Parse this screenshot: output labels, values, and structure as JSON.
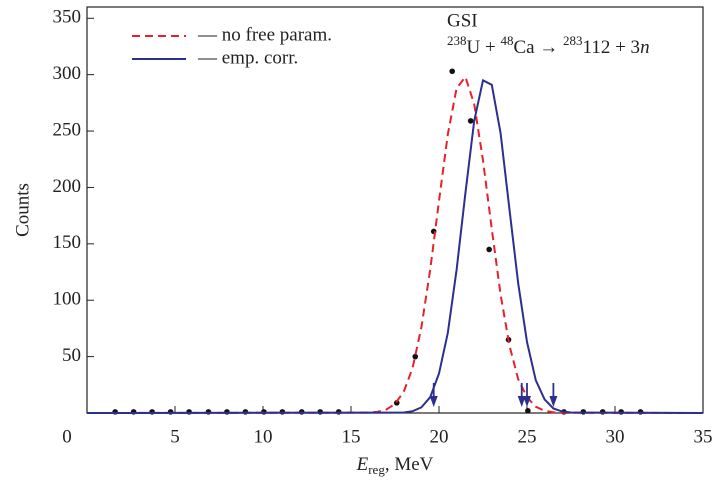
{
  "chart_data": {
    "type": "line",
    "xlim": [
      0,
      35
    ],
    "xticks": [
      0,
      5,
      10,
      15,
      20,
      25,
      30,
      35
    ],
    "ylim": [
      0,
      360
    ],
    "yticks": [
      50,
      100,
      150,
      200,
      250,
      300,
      350
    ],
    "y_label": "Counts",
    "x_label": {
      "parts": [
        "E",
        "reg",
        ", MeV"
      ],
      "styles": [
        "italic",
        "sub",
        "normal"
      ]
    },
    "legend": "upper left",
    "annotation": {
      "title": "GSI",
      "parts": [
        "238",
        "U + ",
        "48",
        "Ca → ",
        "283",
        "112 + 3",
        "n"
      ],
      "styles": [
        "sup",
        "normal",
        "sup",
        "normal",
        "sup",
        "normal",
        "italic"
      ]
    },
    "arrows": {
      "color": "#2b2f8f",
      "x": [
        19.7,
        24.7,
        25.0,
        26.5
      ]
    },
    "series": [
      {
        "type": "scatter",
        "color": "#111111",
        "x": [
          1.6,
          2.65,
          3.7,
          4.75,
          5.8,
          6.9,
          7.95,
          9.0,
          10.05,
          11.1,
          12.2,
          13.25,
          14.3,
          17.6,
          18.65,
          19.7,
          20.75,
          21.8,
          22.85,
          23.95,
          25.05,
          27.1,
          28.2,
          29.3,
          30.35,
          31.45
        ],
        "values": [
          1,
          1,
          1,
          1,
          1,
          1,
          1,
          1,
          1,
          1,
          1,
          1,
          1,
          9,
          50,
          161,
          303,
          259,
          145,
          65,
          2,
          1,
          1,
          1,
          1,
          1
        ]
      },
      {
        "type": "line",
        "name": "— no free param.",
        "color": "#e8202a",
        "dashed": true,
        "x": [
          0,
          16,
          16.5,
          17,
          17.5,
          18,
          18.5,
          19,
          19.5,
          20,
          20.5,
          21,
          21.5,
          22,
          22.5,
          23,
          23.5,
          24,
          24.5,
          25,
          25.5,
          26,
          26.5,
          27,
          35
        ],
        "values": [
          0,
          0.3,
          1,
          3,
          8,
          19,
          40,
          76,
          127,
          188,
          247,
          288,
          298,
          274,
          224,
          163,
          105,
          60,
          30,
          14,
          5.5,
          2,
          0.6,
          0.2,
          0
        ]
      },
      {
        "type": "line",
        "name": "— emp. corr.",
        "color": "#2b2f8f",
        "dashed": false,
        "x": [
          0,
          18,
          18.5,
          19,
          19.5,
          20,
          20.5,
          21,
          21.5,
          22,
          22.5,
          23,
          23.5,
          24,
          24.5,
          25,
          25.5,
          26,
          26.5,
          27,
          27.5,
          35
        ],
        "values": [
          0,
          0.4,
          1.6,
          5,
          14,
          35,
          71,
          127,
          195,
          259,
          295,
          291,
          248,
          181,
          115,
          63,
          29,
          12,
          4,
          1.3,
          0.4,
          0
        ]
      }
    ]
  }
}
